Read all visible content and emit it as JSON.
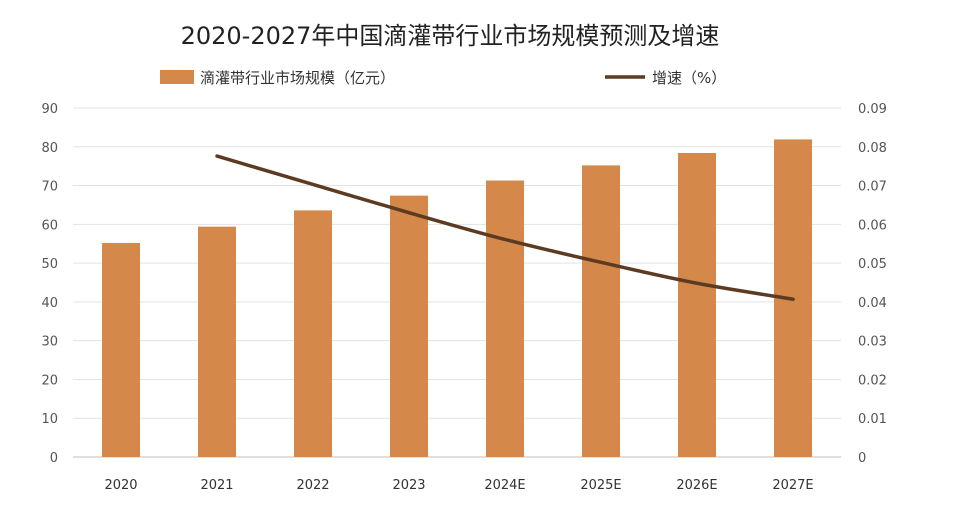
{
  "chart_data": {
    "type": "bar+line",
    "title": "2020-2027年中国滴灌带行业市场规模预测及增速",
    "categories": [
      "2020",
      "2021",
      "2022",
      "2023",
      "2024E",
      "2025E",
      "2026E",
      "2027E"
    ],
    "series": [
      {
        "name": "滴灌带行业市场规模（亿元）",
        "type": "bar",
        "axis": "left",
        "color": "#D4894A",
        "values": [
          55.2,
          59.4,
          63.6,
          67.4,
          71.3,
          75.2,
          78.4,
          81.9
        ]
      },
      {
        "name": "增速（%）",
        "type": "line",
        "axis": "right",
        "color": "#5C3B22",
        "values": [
          null,
          0.0776,
          0.0703,
          0.063,
          0.0561,
          0.0502,
          0.0448,
          0.0407
        ]
      }
    ],
    "y_left": {
      "range": [
        0,
        90
      ],
      "ticks": [
        "0",
        "10",
        "20",
        "30",
        "40",
        "50",
        "60",
        "70",
        "80",
        "90"
      ]
    },
    "y_right": {
      "range": [
        0,
        0.09
      ],
      "ticks": [
        "0",
        "0.01",
        "0.02",
        "0.03",
        "0.04",
        "0.05",
        "0.06",
        "0.07",
        "0.08",
        "0.09"
      ]
    },
    "grid": true,
    "legend_position": "top"
  }
}
